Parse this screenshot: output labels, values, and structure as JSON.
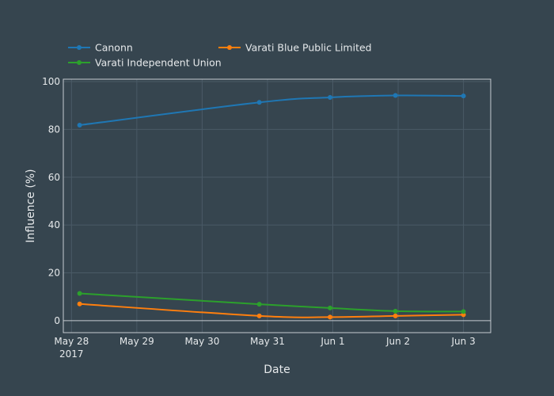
{
  "chart_data": {
    "type": "line",
    "title": "",
    "xlabel": "Date",
    "ylabel": "Influence (%)",
    "x": [
      "2017-05-28 03:00",
      "2017-05-30 21:00",
      "2017-05-31 23:00",
      "2017-06-01 23:00",
      "2017-06-03 00:00"
    ],
    "xlim": [
      "2017-05-27 21:00",
      "2017-06-03 10:00"
    ],
    "ylim": [
      -5,
      101
    ],
    "x_ticks": [
      {
        "date": "2017-05-28",
        "label": "May 28",
        "sublabel": "2017"
      },
      {
        "date": "2017-05-29",
        "label": "May 29",
        "sublabel": ""
      },
      {
        "date": "2017-05-30",
        "label": "May 30",
        "sublabel": ""
      },
      {
        "date": "2017-05-31",
        "label": "May 31",
        "sublabel": ""
      },
      {
        "date": "2017-06-01",
        "label": "Jun 1",
        "sublabel": ""
      },
      {
        "date": "2017-06-02",
        "label": "Jun 2",
        "sublabel": ""
      },
      {
        "date": "2017-06-03",
        "label": "Jun 3",
        "sublabel": ""
      }
    ],
    "y_ticks": [
      0,
      20,
      40,
      60,
      80,
      100
    ],
    "grid": true,
    "legend_position": "top-left",
    "series": [
      {
        "name": "Canonn",
        "color": "#1f77b4",
        "values": [
          81.8,
          91.3,
          93.4,
          94.2,
          94.0
        ]
      },
      {
        "name": "Varati Blue Public Limited",
        "color": "#ff7f0e",
        "values": [
          7.0,
          2.0,
          1.5,
          2.0,
          2.5
        ]
      },
      {
        "name": "Varati Independent Union",
        "color": "#2ca02c",
        "values": [
          11.4,
          6.9,
          5.3,
          4.0,
          3.8
        ]
      }
    ]
  }
}
